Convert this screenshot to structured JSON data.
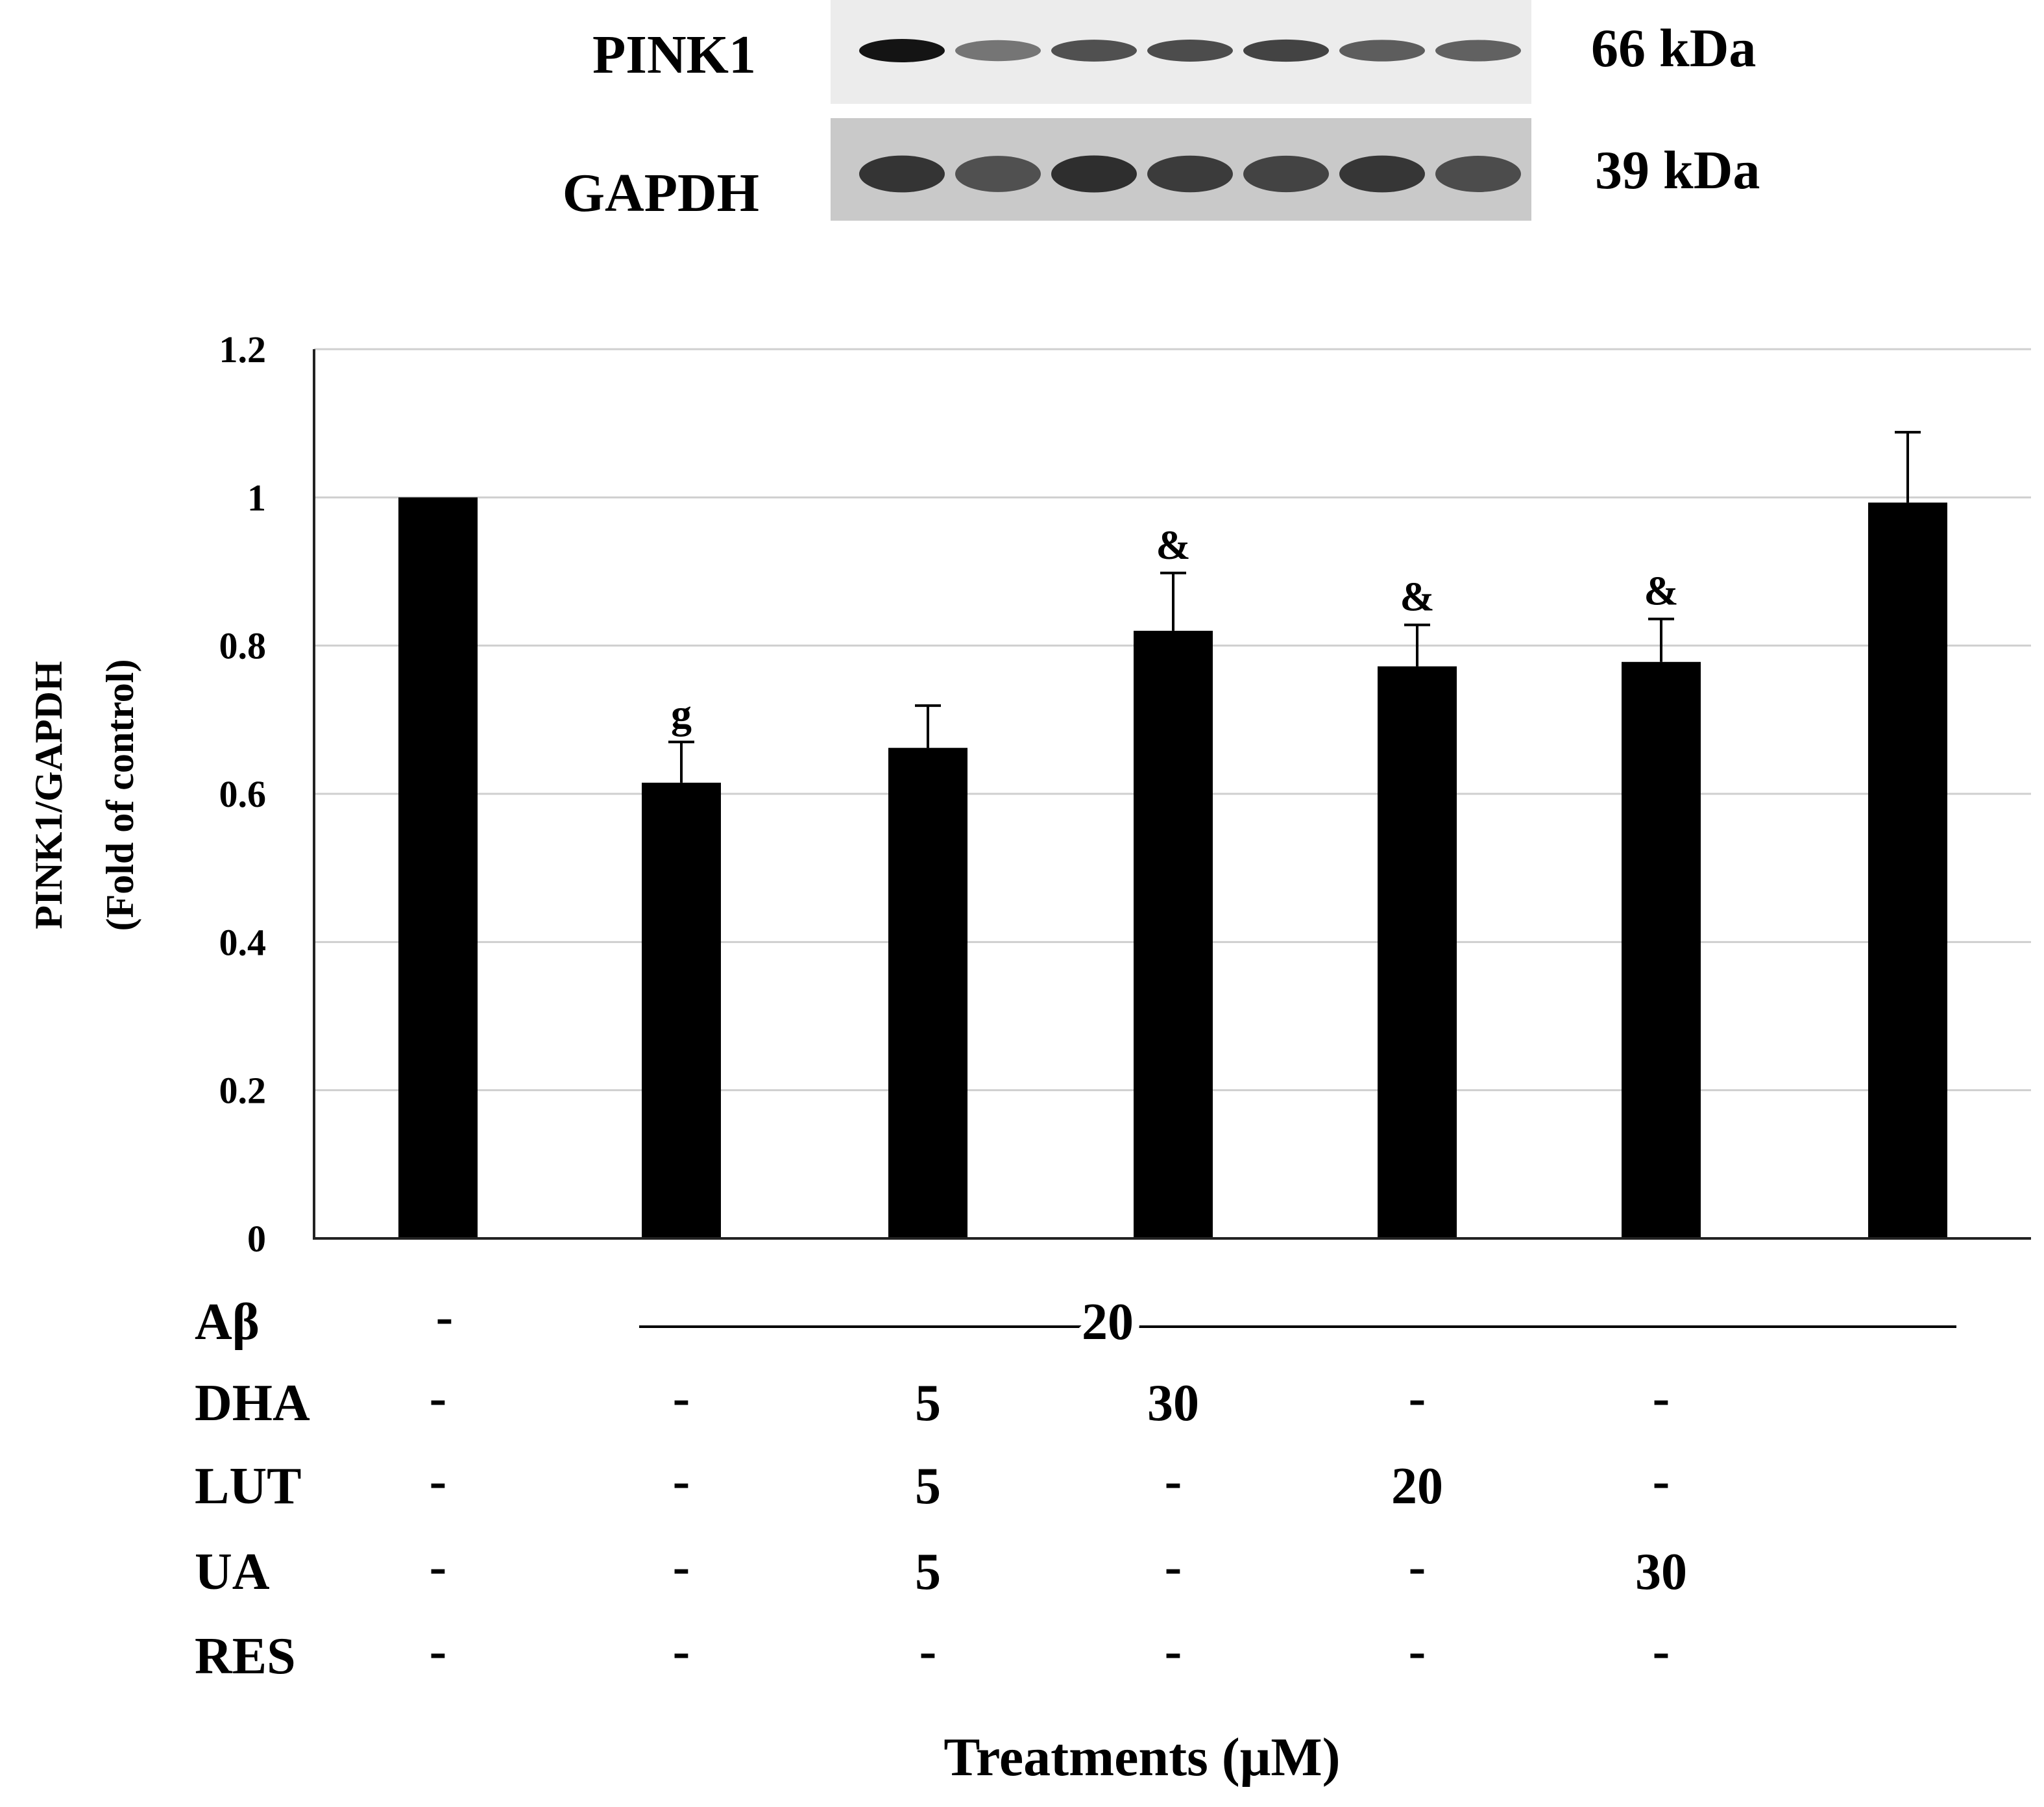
{
  "blot": {
    "rows": [
      {
        "label": "PINK1",
        "size": "66 kDa",
        "intensities": [
          1.0,
          0.55,
          0.72,
          0.74,
          0.78,
          0.66,
          0.64
        ]
      },
      {
        "label": "GAPDH",
        "size": "39 kDa",
        "intensities": [
          0.85,
          0.72,
          0.88,
          0.82,
          0.78,
          0.84,
          0.74
        ]
      }
    ]
  },
  "chart_data": {
    "type": "bar",
    "ylabel": [
      "PINK1/GAPDH",
      "(Fold  of control)"
    ],
    "xlabel": "Treatments (μM)",
    "ylim": [
      0,
      1.2
    ],
    "yticks": [
      "0",
      "0.2",
      "0.4",
      "0.6",
      "0.8",
      "1",
      "1.2"
    ],
    "grid": true,
    "bar_color": "#000000",
    "values": [
      1.0,
      0.615,
      0.662,
      0.82,
      0.772,
      0.778,
      0.993
    ],
    "errors": [
      0.0,
      0.055,
      0.057,
      0.078,
      0.056,
      0.058,
      0.095
    ],
    "significance": [
      "",
      "g",
      "",
      "&",
      "&",
      "&",
      ""
    ]
  },
  "treatments": {
    "rows": [
      {
        "label": "Aβ",
        "values": [
          "-"
        ],
        "span_value": "20"
      },
      {
        "label": "DHA",
        "values": [
          "-",
          "-",
          "5",
          "30",
          "-",
          "-"
        ]
      },
      {
        "label": "LUT",
        "values": [
          "-",
          "-",
          "5",
          "-",
          "20",
          "-"
        ]
      },
      {
        "label": "UA",
        "values": [
          "-",
          "-",
          "5",
          "-",
          "-",
          "30"
        ]
      },
      {
        "label": "RES",
        "values": [
          "-",
          "-",
          "-",
          "-",
          "-",
          "-"
        ]
      }
    ]
  }
}
